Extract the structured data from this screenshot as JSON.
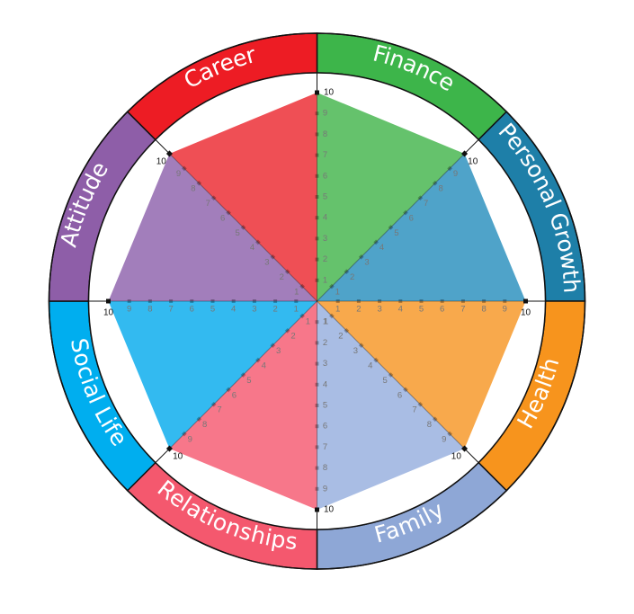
{
  "chart_data": {
    "type": "radar",
    "scale": {
      "min": 0,
      "max": 10,
      "ticks": [
        1,
        2,
        3,
        4,
        5,
        6,
        7,
        8,
        9,
        10
      ]
    },
    "categories": [
      {
        "name": "Finance",
        "value": 10,
        "color": "#3db54a",
        "fill": "#65c26c"
      },
      {
        "name": "Personal Growth",
        "value": 10,
        "color": "#1e7fa8",
        "fill": "#4fa3c9"
      },
      {
        "name": "Health",
        "value": 10,
        "color": "#f7941d",
        "fill": "#f8a94c"
      },
      {
        "name": "Family",
        "value": 10,
        "color": "#8ea7d6",
        "fill": "#a9bde4"
      },
      {
        "name": "Relationships",
        "value": 10,
        "color": "#f4586e",
        "fill": "#f7778a"
      },
      {
        "name": "Social Life",
        "value": 10,
        "color": "#00aeef",
        "fill": "#33baf0"
      },
      {
        "name": "Attitude",
        "value": 10,
        "color": "#8e5ea8",
        "fill": "#a27ebb"
      },
      {
        "name": "Career",
        "value": 10,
        "color": "#ed1c24",
        "fill": "#ef4f55"
      }
    ]
  }
}
